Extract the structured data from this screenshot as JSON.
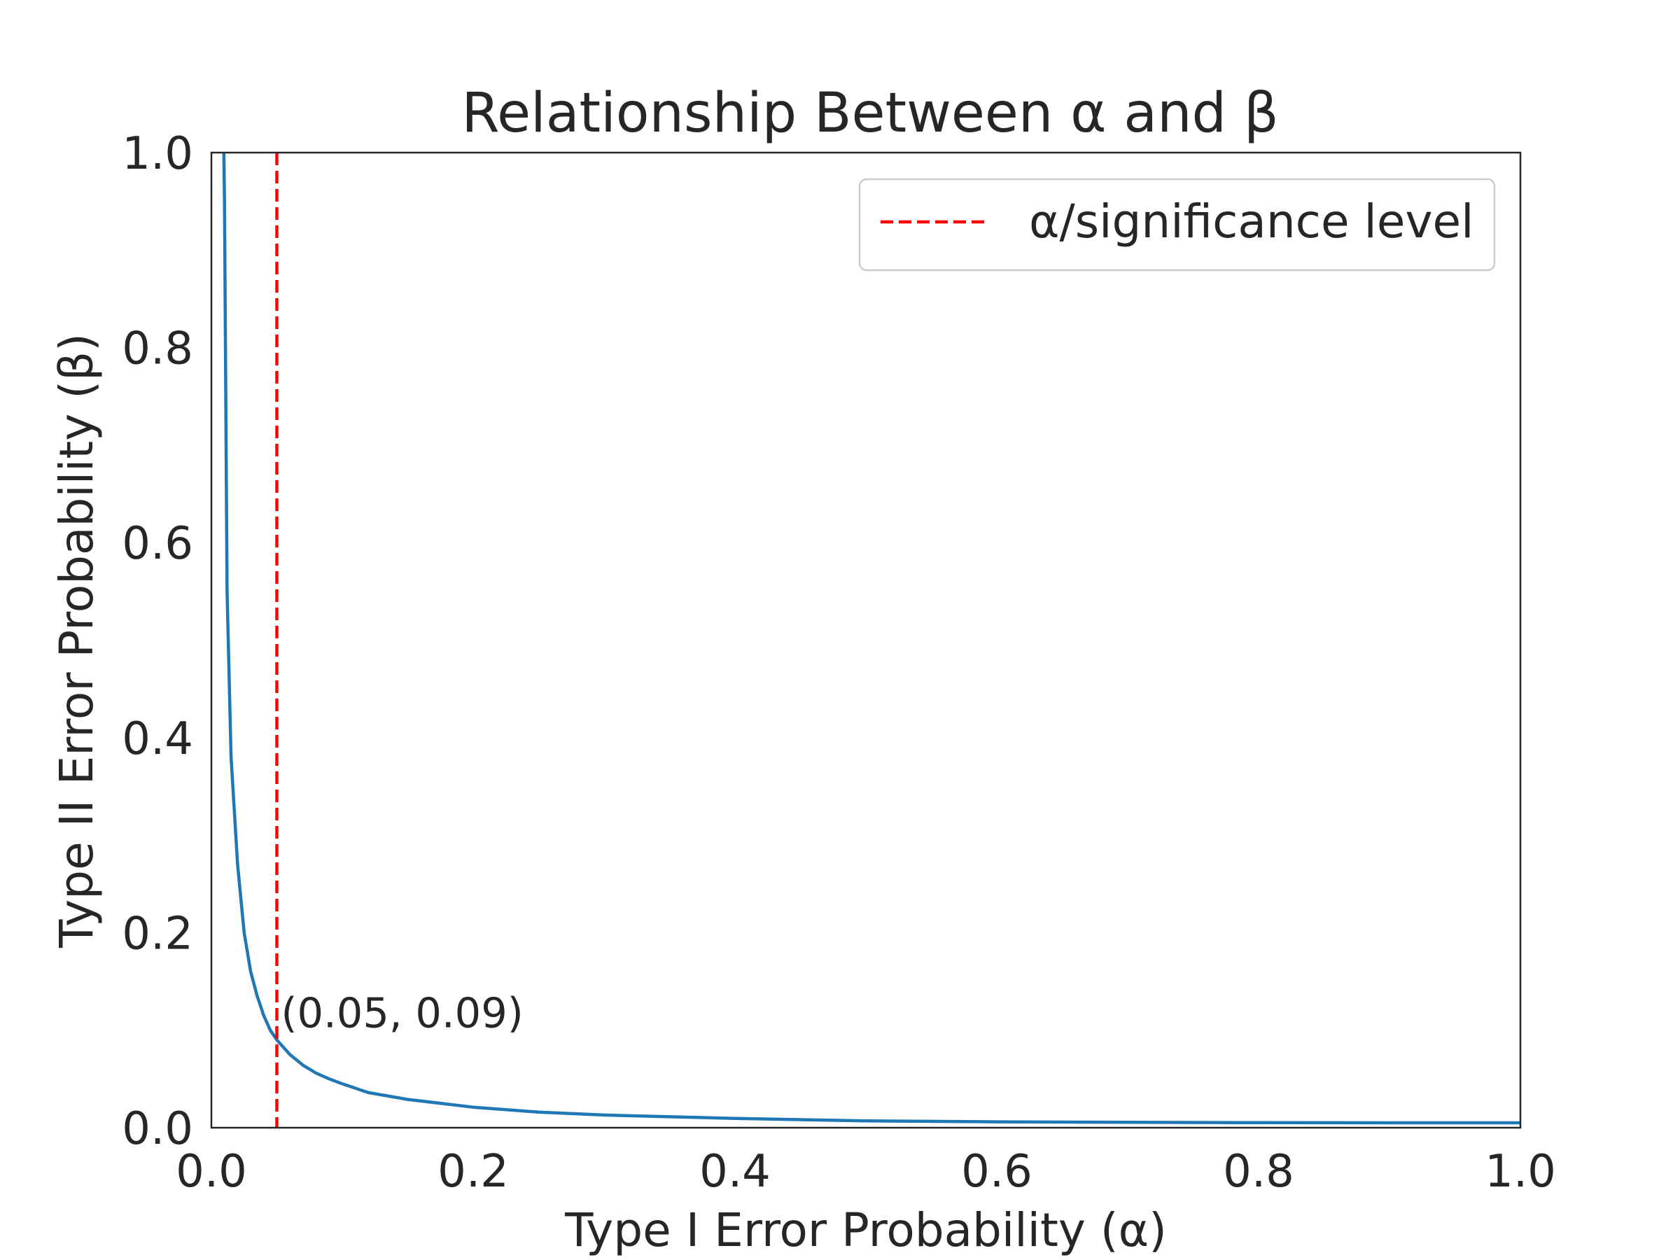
{
  "chart_data": {
    "type": "line",
    "title": "Relationship Between α and β",
    "xlabel": "Type I Error Probability (α)",
    "ylabel": "Type II Error Probability (β)",
    "xlim": [
      0.0,
      1.0
    ],
    "ylim": [
      0.0,
      1.0
    ],
    "xticks": [
      "0.0",
      "0.2",
      "0.4",
      "0.6",
      "0.8",
      "1.0"
    ],
    "yticks": [
      "0.0",
      "0.2",
      "0.4",
      "0.6",
      "0.8",
      "1.0"
    ],
    "grid": false,
    "legend": {
      "placement": "top-right",
      "entries": [
        "α/significance level"
      ]
    },
    "series": [
      {
        "color": "#1f77b4",
        "style": "solid",
        "points": [
          [
            0.0095,
            1.0
          ],
          [
            0.01,
            0.95
          ],
          [
            0.012,
            0.55
          ],
          [
            0.015,
            0.38
          ],
          [
            0.02,
            0.27
          ],
          [
            0.025,
            0.2
          ],
          [
            0.03,
            0.16
          ],
          [
            0.035,
            0.135
          ],
          [
            0.04,
            0.115
          ],
          [
            0.045,
            0.1
          ],
          [
            0.05,
            0.09
          ],
          [
            0.06,
            0.075
          ],
          [
            0.07,
            0.064
          ],
          [
            0.08,
            0.056
          ],
          [
            0.09,
            0.05
          ],
          [
            0.1,
            0.045
          ],
          [
            0.12,
            0.036
          ],
          [
            0.15,
            0.029
          ],
          [
            0.2,
            0.021
          ],
          [
            0.25,
            0.016
          ],
          [
            0.3,
            0.013
          ],
          [
            0.4,
            0.0095
          ],
          [
            0.5,
            0.007
          ],
          [
            0.6,
            0.006
          ],
          [
            0.7,
            0.0055
          ],
          [
            0.8,
            0.0052
          ],
          [
            0.9,
            0.005
          ],
          [
            1.0,
            0.005
          ]
        ]
      },
      {
        "name": "α/significance level",
        "color": "#ff0000",
        "style": "dashed",
        "x": 0.05
      }
    ],
    "annotations": [
      {
        "text": "(0.05, 0.09)",
        "x": 0.05,
        "y": 0.09
      }
    ]
  }
}
